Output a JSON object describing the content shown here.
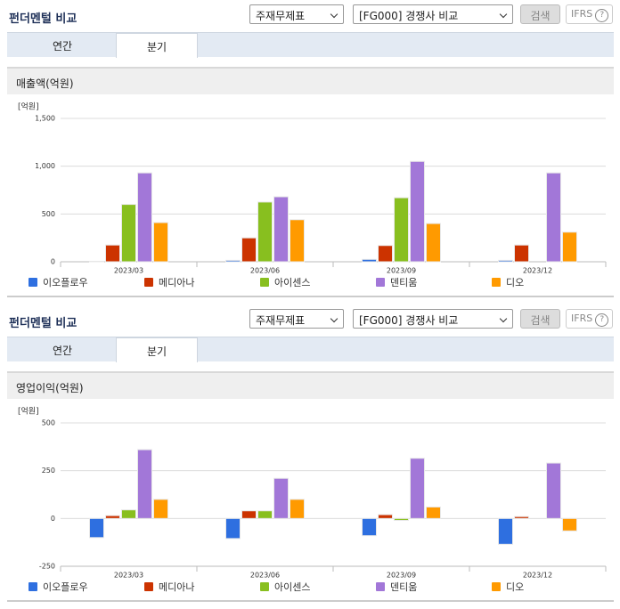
{
  "panels": [
    {
      "title": "펀더멘털 비교",
      "select_type": "주재무제표",
      "select_compare": "[FG000] 경쟁사 비교",
      "search": "검색",
      "ifrs": "IFRS",
      "help": "?",
      "tabs": [
        "연간",
        "분기"
      ],
      "active_tab": 1,
      "section": "매출액(억원)"
    },
    {
      "title": "펀더멘털 비교",
      "select_type": "주재무제표",
      "select_compare": "[FG000] 경쟁사 비교",
      "search": "검색",
      "ifrs": "IFRS",
      "help": "?",
      "tabs": [
        "연간",
        "분기"
      ],
      "active_tab": 1,
      "section": "영업이익(억원)"
    }
  ],
  "chart_data": [
    {
      "type": "bar",
      "y_unit": "[억원]",
      "categories": [
        "2023/03",
        "2023/06",
        "2023/09",
        "2023/12"
      ],
      "series": [
        {
          "name": "이오플로우",
          "color": "#2e6fe0",
          "values": [
            5,
            15,
            25,
            15
          ]
        },
        {
          "name": "메디아나",
          "color": "#cc3300",
          "values": [
            175,
            250,
            170,
            175
          ]
        },
        {
          "name": "아이센스",
          "color": "#88bf1f",
          "values": [
            600,
            625,
            670,
            null
          ]
        },
        {
          "name": "덴티움",
          "color": "#a277d8",
          "values": [
            930,
            680,
            1050,
            930
          ]
        },
        {
          "name": "디오",
          "color": "#ff9a00",
          "values": [
            410,
            440,
            400,
            310
          ]
        }
      ],
      "ylim": [
        0,
        1500
      ],
      "yticks": [
        0,
        500,
        {
          "value": 1000,
          "label": "1,000"
        },
        {
          "value": 1500,
          "label": "1,500"
        }
      ],
      "grid": true
    },
    {
      "type": "bar",
      "y_unit": "[억원]",
      "categories": [
        "2023/03",
        "2023/06",
        "2023/09",
        "2023/12"
      ],
      "series": [
        {
          "name": "이오플로우",
          "color": "#2e6fe0",
          "values": [
            -100,
            -105,
            -90,
            -135
          ]
        },
        {
          "name": "메디아나",
          "color": "#cc3300",
          "values": [
            15,
            40,
            20,
            10
          ]
        },
        {
          "name": "아이센스",
          "color": "#88bf1f",
          "values": [
            45,
            40,
            -10,
            null
          ]
        },
        {
          "name": "덴티움",
          "color": "#a277d8",
          "values": [
            360,
            210,
            315,
            290
          ]
        },
        {
          "name": "디오",
          "color": "#ff9a00",
          "values": [
            100,
            100,
            60,
            -65
          ]
        }
      ],
      "ylim": [
        -250,
        500
      ],
      "yticks": [
        -250,
        0,
        250,
        500
      ],
      "grid": true
    }
  ]
}
